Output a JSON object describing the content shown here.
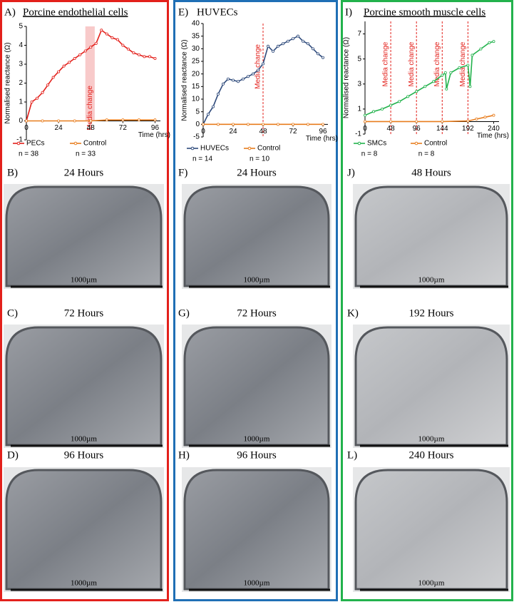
{
  "chart_data": [
    {
      "type": "line",
      "panel_label": "A)",
      "title": "Porcine endothelial cells",
      "title_underline": true,
      "y_label": "Normalised reactance (Ω)",
      "x_label": "Time (hrs)",
      "xlim": [
        0,
        100
      ],
      "xticks": [
        0,
        24,
        48,
        72,
        96
      ],
      "ylim": [
        -1,
        5
      ],
      "yticks": [
        -1,
        0,
        1,
        2,
        3,
        4,
        5
      ],
      "annotations": [
        {
          "x": [
            44,
            51
          ],
          "text": "Media change",
          "style": "band",
          "color": "#f4a6a6"
        }
      ],
      "series": [
        {
          "name": "PECs",
          "n_label": "n = 38",
          "color": "#e3201b",
          "x": [
            0,
            4,
            8,
            12,
            16,
            20,
            24,
            28,
            32,
            36,
            40,
            44,
            48,
            52,
            56,
            60,
            64,
            68,
            72,
            76,
            80,
            84,
            88,
            92,
            96
          ],
          "values": [
            0,
            1.0,
            1.2,
            1.5,
            1.9,
            2.3,
            2.6,
            2.9,
            3.1,
            3.3,
            3.5,
            3.7,
            3.9,
            4.1,
            4.8,
            4.6,
            4.4,
            4.3,
            4.0,
            3.8,
            3.6,
            3.5,
            3.4,
            3.4,
            3.3
          ]
        },
        {
          "name": "Control",
          "n_label": "n = 33",
          "color": "#e87d1e",
          "x": [
            0,
            12,
            24,
            36,
            48,
            60,
            72,
            84,
            96
          ],
          "values": [
            0,
            0,
            0,
            0,
            0,
            0.05,
            0.05,
            0.05,
            0.05
          ]
        }
      ]
    },
    {
      "type": "line",
      "panel_label": "E)",
      "title": "HUVECs",
      "title_underline": false,
      "y_label": "Normalised reactance (Ω)",
      "x_label": "Time (hrs)",
      "xlim": [
        0,
        100
      ],
      "xticks": [
        0,
        24,
        48,
        72,
        96
      ],
      "ylim": [
        -5,
        40
      ],
      "yticks": [
        -5,
        0,
        5,
        10,
        15,
        20,
        25,
        30,
        35,
        40
      ],
      "annotations": [
        {
          "x": [
            48
          ],
          "text": "Media change",
          "style": "dashed",
          "color": "#e3201b"
        }
      ],
      "series": [
        {
          "name": "HUVECs",
          "n_label": "n = 14",
          "color": "#2f4b7c",
          "x": [
            0,
            4,
            8,
            12,
            16,
            20,
            24,
            28,
            32,
            36,
            40,
            44,
            48,
            52,
            56,
            60,
            64,
            68,
            72,
            76,
            80,
            84,
            88,
            92,
            96
          ],
          "values": [
            0,
            4,
            7,
            12,
            16,
            18,
            17.5,
            17,
            18,
            19,
            20,
            21.5,
            24,
            31,
            29,
            31,
            32,
            33,
            34,
            35,
            33,
            32,
            30,
            28,
            26.5
          ]
        },
        {
          "name": "Control",
          "n_label": "n = 10",
          "color": "#e87d1e",
          "x": [
            0,
            12,
            24,
            36,
            48,
            60,
            72,
            84,
            96
          ],
          "values": [
            0,
            0,
            0,
            0,
            0,
            0,
            0,
            0,
            0
          ]
        }
      ]
    },
    {
      "type": "line",
      "panel_label": "I)",
      "title": "Porcine smooth muscle cells",
      "title_underline": true,
      "y_label": "Normalised reactance (Ω)",
      "x_label": "Time (hrs)",
      "xlim": [
        0,
        250
      ],
      "xticks": [
        0,
        48,
        96,
        144,
        192,
        240
      ],
      "ylim": [
        -1,
        8
      ],
      "yticks": [
        -1,
        1,
        3,
        5,
        7
      ],
      "annotations": [
        {
          "x": [
            48
          ],
          "text": "Media change",
          "style": "dashed",
          "color": "#e3201b"
        },
        {
          "x": [
            96
          ],
          "text": "Media change",
          "style": "dashed",
          "color": "#e3201b"
        },
        {
          "x": [
            144
          ],
          "text": "Media change",
          "style": "dashed",
          "color": "#e3201b"
        },
        {
          "x": [
            192
          ],
          "text": "Media change",
          "style": "dashed",
          "color": "#e3201b"
        }
      ],
      "series": [
        {
          "name": "SMCs",
          "n_label": "n = 8",
          "color": "#22b24c",
          "x": [
            0,
            16,
            32,
            48,
            64,
            80,
            96,
            112,
            128,
            144,
            150,
            152,
            160,
            176,
            192,
            196,
            200,
            216,
            232,
            240
          ],
          "values": [
            0.5,
            0.8,
            1.0,
            1.3,
            1.6,
            2.0,
            2.4,
            2.8,
            3.2,
            3.7,
            3.9,
            2.6,
            3.9,
            4.3,
            4.5,
            2.8,
            5.3,
            5.8,
            6.3,
            6.4
          ]
        },
        {
          "name": "Control",
          "n_label": "n = 8",
          "color": "#e87d1e",
          "x": [
            0,
            48,
            96,
            144,
            192,
            208,
            224,
            240
          ],
          "values": [
            0,
            0,
            0,
            0,
            0.05,
            0.2,
            0.35,
            0.5
          ]
        }
      ]
    }
  ],
  "image_panels": [
    {
      "label": "B)",
      "caption": "24 Hours",
      "scale": "1000µm"
    },
    {
      "label": "C)",
      "caption": "72 Hours",
      "scale": "1000µm"
    },
    {
      "label": "D)",
      "caption": "96 Hours",
      "scale": "1000µm"
    },
    {
      "label": "F)",
      "caption": "24 Hours",
      "scale": "1000µm"
    },
    {
      "label": "G)",
      "caption": "72 Hours",
      "scale": "1000µm"
    },
    {
      "label": "H)",
      "caption": "96 Hours",
      "scale": "1000µm"
    },
    {
      "label": "J)",
      "caption": "48 Hours",
      "scale": "1000µm"
    },
    {
      "label": "K)",
      "caption": "192 Hours",
      "scale": "1000µm"
    },
    {
      "label": "L)",
      "caption": "240 Hours",
      "scale": "1000µm"
    }
  ]
}
